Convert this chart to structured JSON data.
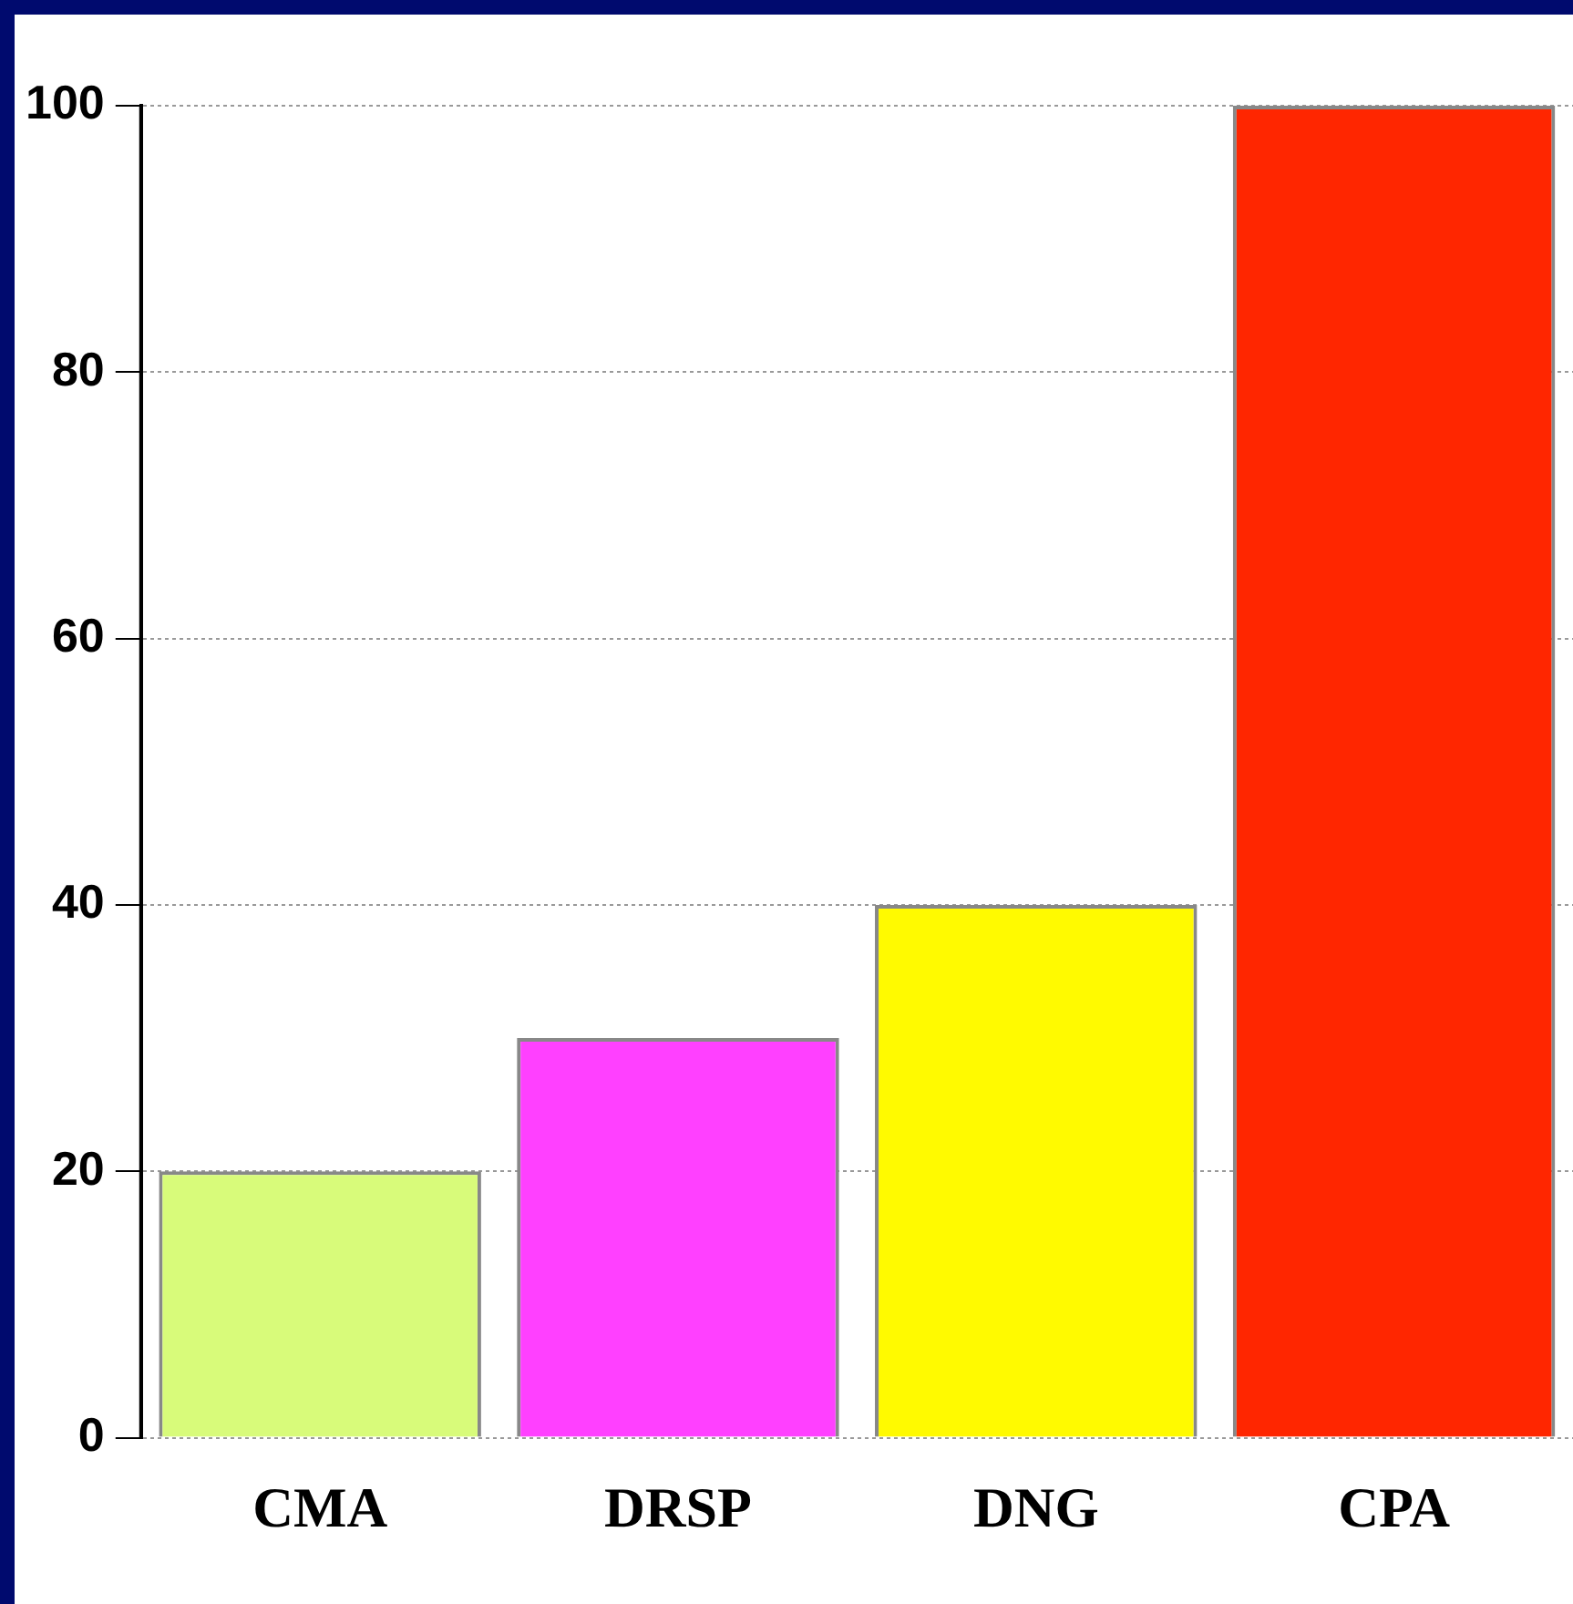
{
  "chart_data": {
    "type": "bar",
    "categories": [
      "CMA",
      "DRSP",
      "DNG",
      "CPA"
    ],
    "values": [
      20,
      30,
      40,
      100
    ],
    "colors": [
      "#d8fb7a",
      "#ff40ff",
      "#fffa00",
      "#ff2600"
    ],
    "ylim": [
      0,
      100
    ],
    "yticks": [
      0,
      20,
      40,
      60,
      80,
      100
    ],
    "grid": "y",
    "legend": false
  }
}
